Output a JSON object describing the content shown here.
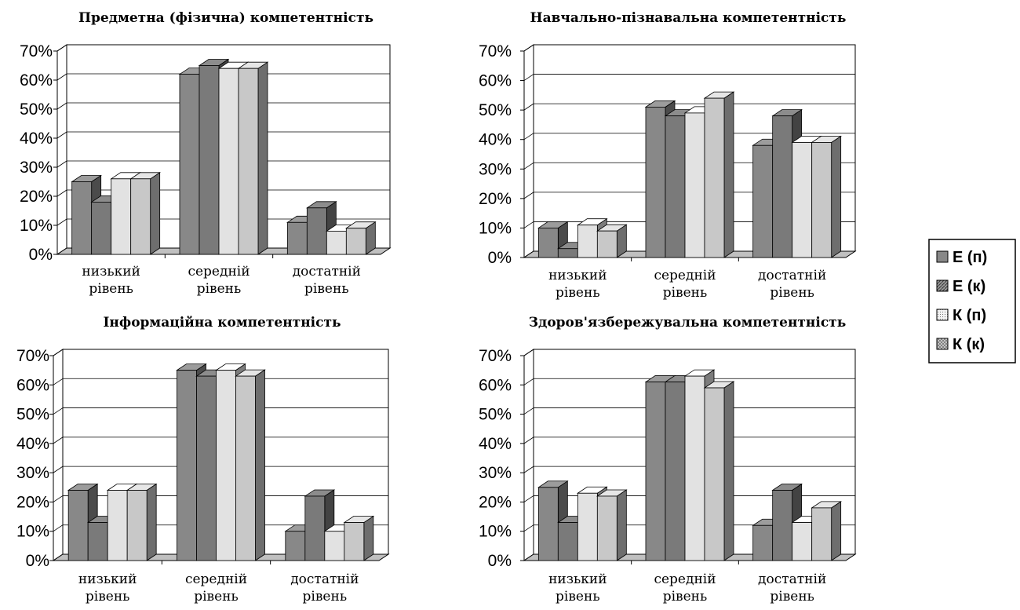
{
  "colors": {
    "E_p": "#888888",
    "E_k": "#7a7a7a",
    "K_p": "#e2e2e2",
    "K_k": "#c8c8c8"
  },
  "legend": {
    "entries": [
      "Е (п)",
      "Е (к)",
      "К (п)",
      "К (к)"
    ],
    "patterns": [
      "solid",
      "diagonal-hatch",
      "dots",
      "crosshatch"
    ]
  },
  "chart_data": [
    {
      "type": "bar",
      "title": "Предметна (фізична) компетентність",
      "categories": [
        "низький рівень",
        "середній рівень",
        "достатній рівень"
      ],
      "category_lines": [
        [
          "низький",
          "рівень"
        ],
        [
          "середній",
          "рівень"
        ],
        [
          "достатній",
          "рівень"
        ]
      ],
      "yticks": [
        "0%",
        "10%",
        "20%",
        "30%",
        "40%",
        "50%",
        "60%",
        "70%"
      ],
      "ylim": [
        0,
        70
      ],
      "grid": true,
      "series": [
        {
          "name": "Е (п)",
          "values": [
            25,
            62,
            11
          ]
        },
        {
          "name": "Е (к)",
          "values": [
            18,
            65,
            16
          ]
        },
        {
          "name": "К (п)",
          "values": [
            26,
            64,
            8
          ]
        },
        {
          "name": "К (к)",
          "values": [
            26,
            64,
            9
          ]
        }
      ]
    },
    {
      "type": "bar",
      "title": "Навчально-пізнавальна компетентність",
      "categories": [
        "низький рівень",
        "середній рівень",
        "достатній рівень"
      ],
      "category_lines": [
        [
          "низький",
          "рівень"
        ],
        [
          "середній",
          "рівень"
        ],
        [
          "достатній",
          "рівень"
        ]
      ],
      "yticks": [
        "0%",
        "10%",
        "20%",
        "30%",
        "40%",
        "50%",
        "60%",
        "70%"
      ],
      "ylim": [
        0,
        70
      ],
      "grid": true,
      "series": [
        {
          "name": "Е (п)",
          "values": [
            10,
            51,
            38
          ]
        },
        {
          "name": "Е (к)",
          "values": [
            3,
            48,
            48
          ]
        },
        {
          "name": "К (п)",
          "values": [
            11,
            49,
            39
          ]
        },
        {
          "name": "К (к)",
          "values": [
            9,
            54,
            39
          ]
        }
      ]
    },
    {
      "type": "bar",
      "title": "Інформаційна компетентність",
      "categories": [
        "низький рівень",
        "середній рівень",
        "достатній рівень"
      ],
      "category_lines": [
        [
          "низький",
          "рівень"
        ],
        [
          "середній",
          "рівень"
        ],
        [
          "достатній",
          "рівень"
        ]
      ],
      "yticks": [
        "0%",
        "10%",
        "20%",
        "30%",
        "40%",
        "50%",
        "60%",
        "70%"
      ],
      "ylim": [
        0,
        70
      ],
      "grid": true,
      "series": [
        {
          "name": "Е (п)",
          "values": [
            24,
            65,
            10
          ]
        },
        {
          "name": "Е (к)",
          "values": [
            13,
            63,
            22
          ]
        },
        {
          "name": "К (п)",
          "values": [
            24,
            65,
            10
          ]
        },
        {
          "name": "К (к)",
          "values": [
            24,
            63,
            13
          ]
        }
      ]
    },
    {
      "type": "bar",
      "title": "Здоров'язбережувальна компетентність",
      "categories": [
        "низький рівень",
        "середній рівень",
        "достатній рівень"
      ],
      "category_lines": [
        [
          "низький",
          "рівень"
        ],
        [
          "середній",
          "рівень"
        ],
        [
          "достатній",
          "рівень"
        ]
      ],
      "yticks": [
        "0%",
        "10%",
        "20%",
        "30%",
        "40%",
        "50%",
        "60%",
        "70%"
      ],
      "ylim": [
        0,
        70
      ],
      "grid": true,
      "series": [
        {
          "name": "Е (п)",
          "values": [
            25,
            61,
            12
          ]
        },
        {
          "name": "Е (к)",
          "values": [
            13,
            61,
            24
          ]
        },
        {
          "name": "К (п)",
          "values": [
            23,
            63,
            13
          ]
        },
        {
          "name": "К (к)",
          "values": [
            22,
            59,
            18
          ]
        }
      ]
    }
  ]
}
